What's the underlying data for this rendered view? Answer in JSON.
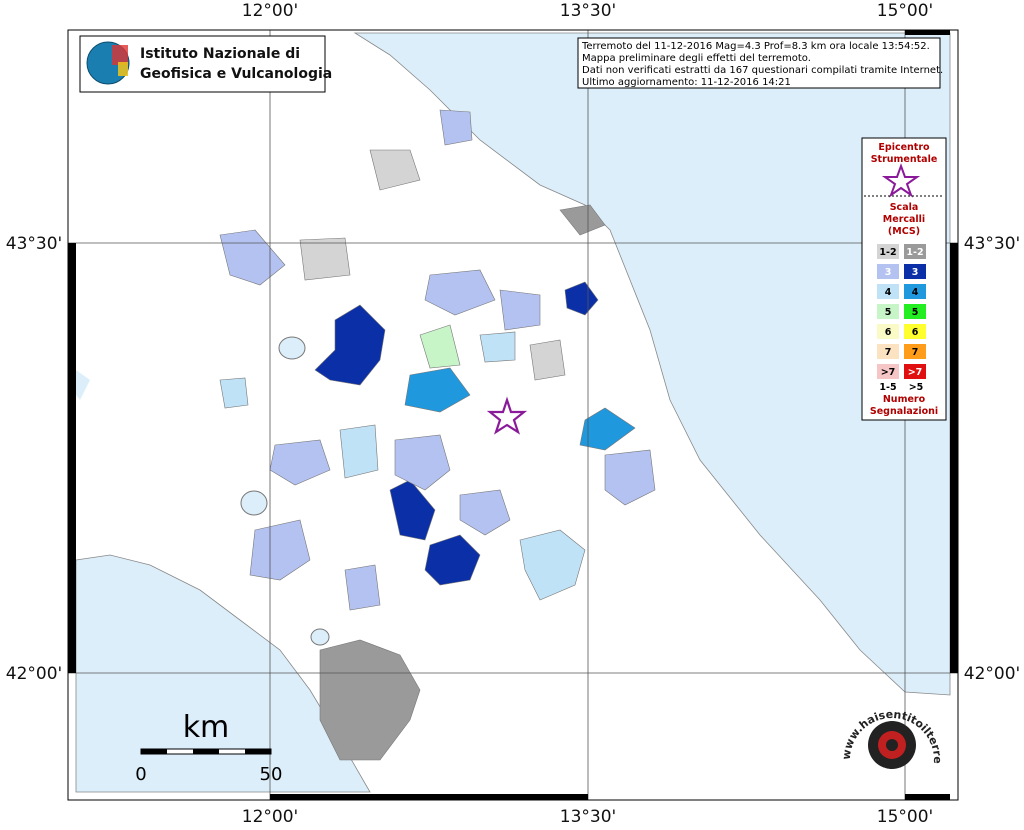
{
  "header": {
    "institute_lines": [
      "Istituto Nazionale di",
      "Geofisica e Vulcanologia"
    ]
  },
  "info": [
    "Terremoto del 11-12-2016 Mag=4.3 Prof=8.3 km ora locale 13:54:52.",
    "Mappa preliminare degli effetti del terremoto.",
    "Dati non verificati estratti da 167 questionari compilati tramite Internet.",
    "Ultimo aggiornamento: 11-12-2016 14:21"
  ],
  "axes": {
    "lon_labels": [
      "12°00'",
      "13°30'",
      "15°00'"
    ],
    "lat_labels": [
      "43°30'",
      "42°00'"
    ]
  },
  "legend": {
    "epicenter_lines": [
      "Epicentro",
      "Strumentale"
    ],
    "scale_lines": [
      "Scala",
      "Mercalli",
      "(MCS)"
    ],
    "levels": [
      {
        "label": "1-2",
        "light": "#d4d4d4",
        "dark": "#9a9a9a"
      },
      {
        "label": "3",
        "light": "#b4c2f2",
        "dark": "#0b2fa6"
      },
      {
        "label": "4",
        "light": "#bfe2f6",
        "dark": "#1f98de"
      },
      {
        "label": "5",
        "light": "#c8f5c8",
        "dark": "#22ee22"
      },
      {
        "label": "6",
        "light": "#fafac6",
        "dark": "#ffff30"
      },
      {
        "label": "7",
        "light": "#fbe2c0",
        "dark": "#ff9c1a"
      },
      {
        "label": ">7",
        "light": "#f6c6c6",
        "dark": "#e01010"
      }
    ],
    "count_labels": [
      "1-5",
      ">5"
    ],
    "count_title_lines": [
      "Numero",
      "Segnalazioni"
    ]
  },
  "scale_bar": {
    "unit": "km",
    "labels": [
      "0",
      "50"
    ]
  },
  "site_logo": "www.haisentitoilterremoto.it"
}
